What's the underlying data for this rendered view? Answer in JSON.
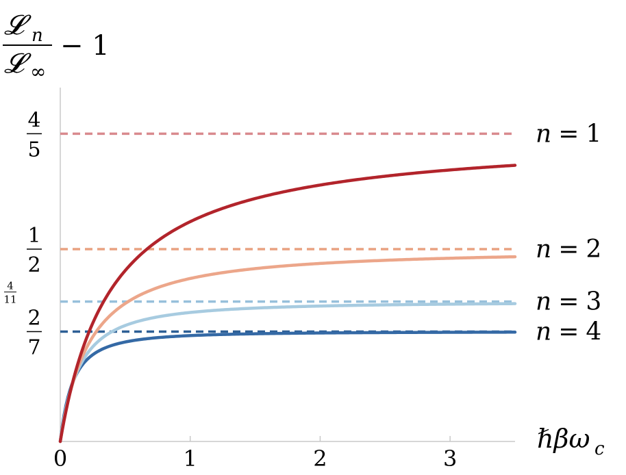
{
  "chart_data": {
    "type": "line",
    "ylabel": {
      "numerator": "𝓛",
      "numerator_sub": "n",
      "denominator": "𝓛",
      "denominator_sub": "∞",
      "suffix": "− 1"
    },
    "xlabel": "ℏβω",
    "xlabel_sub": "c",
    "xlim": [
      0,
      3.5
    ],
    "ylim": [
      0,
      0.92
    ],
    "x_ticks": [
      "0",
      "1",
      "2",
      "3"
    ],
    "x_tick_values": [
      0,
      1,
      2,
      3
    ],
    "y_ticks": [
      {
        "num": "4",
        "den": "5",
        "value": 0.8,
        "size": "large"
      },
      {
        "num": "1",
        "den": "2",
        "value": 0.5,
        "size": "large"
      },
      {
        "num": "4",
        "den": "11",
        "value": 0.3636,
        "size": "small"
      },
      {
        "num": "2",
        "den": "7",
        "value": 0.2857,
        "size": "large"
      }
    ],
    "grid": false,
    "legend": "right",
    "series": [
      {
        "name": "n = 1",
        "n": "n",
        "eq": "=",
        "idx": "1",
        "asymptote": 0.8,
        "color": "#b2242b",
        "dash_color": "#d98a8e"
      },
      {
        "name": "n = 2",
        "n": "n",
        "eq": "=",
        "idx": "2",
        "asymptote": 0.5,
        "color": "#eca68a",
        "dash_color": "#e9a281"
      },
      {
        "name": "n = 3",
        "n": "n",
        "eq": "=",
        "idx": "3",
        "asymptote": 0.3636,
        "color": "#a7cbe0",
        "dash_color": "#97c0db"
      },
      {
        "name": "n = 4",
        "n": "n",
        "eq": "=",
        "idx": "4",
        "asymptote": 0.2857,
        "color": "#3469a5",
        "dash_color": "#2d5f95"
      }
    ]
  }
}
